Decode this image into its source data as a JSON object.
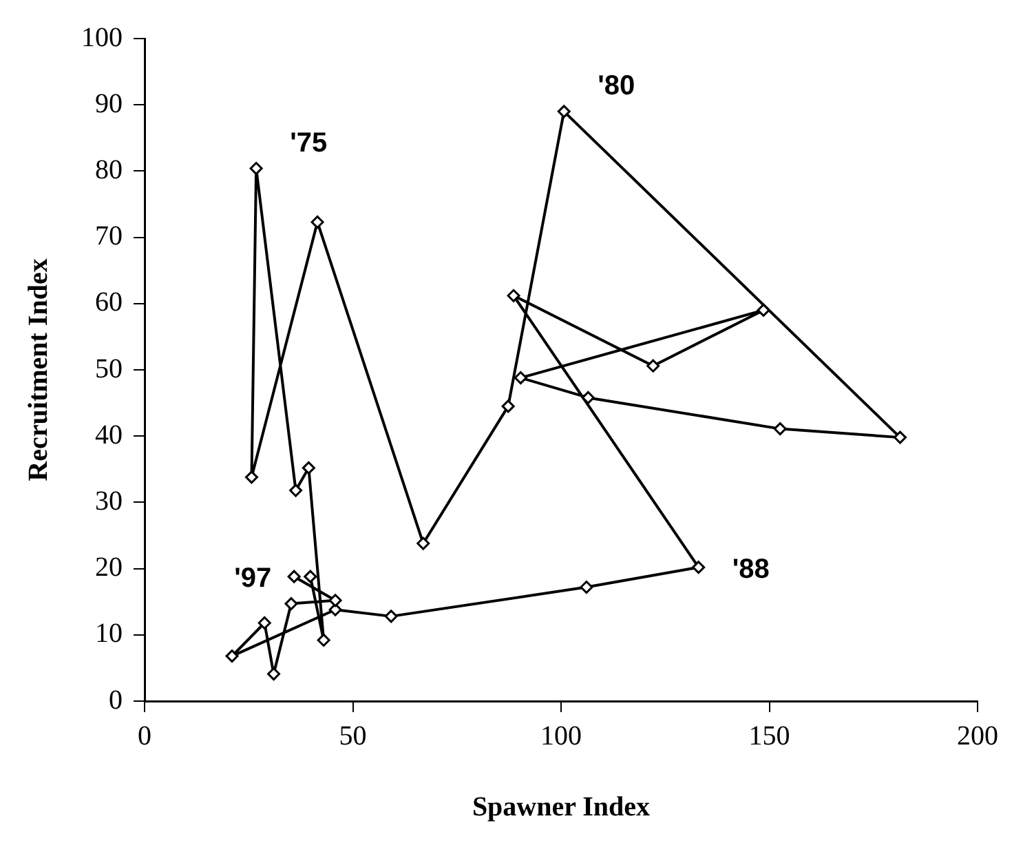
{
  "chart_data": {
    "type": "line",
    "xlabel": "Spawner Index",
    "ylabel": "Recruitment Index",
    "x": [
      39.8,
      43,
      39.4,
      36.3,
      26.8,
      25.7,
      41.5,
      66.9,
      87.3,
      100.7,
      181.4,
      152.6,
      106.5,
      90.3,
      148.6,
      122.1,
      88.6,
      133,
      106.1,
      59.2,
      45.8,
      21,
      28.8,
      31,
      35.2,
      45.8,
      35.9
    ],
    "series": [
      {
        "color": "#000000",
        "values": [
          18.8,
          9.2,
          35.2,
          31.8,
          80.4,
          33.8,
          72.3,
          23.8,
          44.5,
          89,
          39.8,
          41.1,
          45.8,
          48.8,
          59,
          50.6,
          61.2,
          20.2,
          17.2,
          12.8,
          13.8,
          6.8,
          11.8,
          4.1,
          14.7,
          15.2,
          18.8
        ]
      }
    ],
    "xlim": [
      0,
      200
    ],
    "xticks": [
      0,
      50,
      100,
      150,
      200
    ],
    "ylim": [
      0,
      100
    ],
    "yticks": [
      0,
      10,
      20,
      30,
      40,
      50,
      60,
      70,
      80,
      90,
      100
    ],
    "grid": false,
    "legend": false,
    "marker": "diamond",
    "line_style": "solid",
    "annotations": [
      {
        "text": "'75",
        "x": 26.8,
        "y": 80.4
      },
      {
        "text": "'80",
        "x": 100.7,
        "y": 89
      },
      {
        "text": "'88",
        "x": 133,
        "y": 20.2
      },
      {
        "text": "'97",
        "x": 35.9,
        "y": 18.8
      }
    ]
  }
}
